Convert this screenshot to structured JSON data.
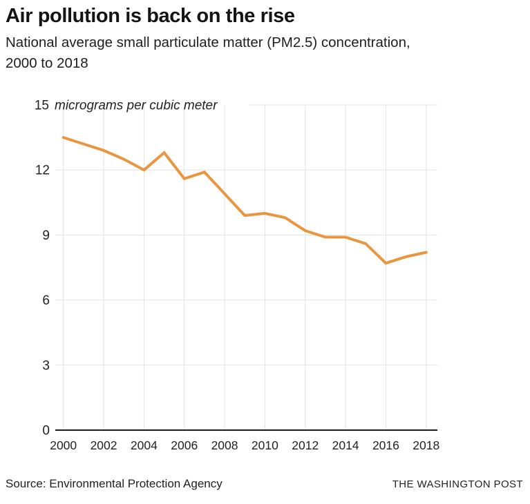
{
  "header": {
    "title": "Air pollution is back on the rise",
    "subtitle": {
      "line1": "National average small particulate matter (PM2.5) concentration,",
      "line2": "2000 to 2018"
    }
  },
  "chart_data": {
    "type": "line",
    "title": "Air pollution is back on the rise",
    "subtitle": "National average small particulate matter (PM2.5) concentration, 2000 to 2018",
    "ylabel": "micrograms per cubic meter",
    "xlabel": "",
    "unit_label": {
      "value": "15",
      "text": "micrograms per cubic meter"
    },
    "x": [
      2000,
      2001,
      2002,
      2003,
      2004,
      2005,
      2006,
      2007,
      2008,
      2009,
      2010,
      2011,
      2012,
      2013,
      2014,
      2015,
      2016,
      2017,
      2018
    ],
    "series": [
      {
        "name": "National average PM2.5 concentration",
        "values": [
          13.5,
          13.2,
          12.9,
          12.5,
          12.0,
          12.8,
          11.6,
          11.9,
          10.9,
          9.9,
          10.0,
          9.8,
          9.2,
          8.9,
          8.9,
          8.6,
          7.7,
          8.0,
          8.2
        ]
      }
    ],
    "ylim": [
      0,
      15
    ],
    "yticks": [
      0,
      3,
      6,
      9,
      12,
      15
    ],
    "xtick_labels": [
      "2000",
      "2002",
      "2004",
      "2006",
      "2008",
      "2010",
      "2012",
      "2014",
      "2016",
      "2018"
    ],
    "grid": true,
    "legend": "none",
    "line_color": "#E8963F",
    "grid_color": "#E3E3E3",
    "baseline_color": "#1A1A1A",
    "tick_label_color": "#222222"
  },
  "footer": {
    "source": "Source: Environmental Protection Agency",
    "brand": "THE WASHINGTON POST"
  }
}
